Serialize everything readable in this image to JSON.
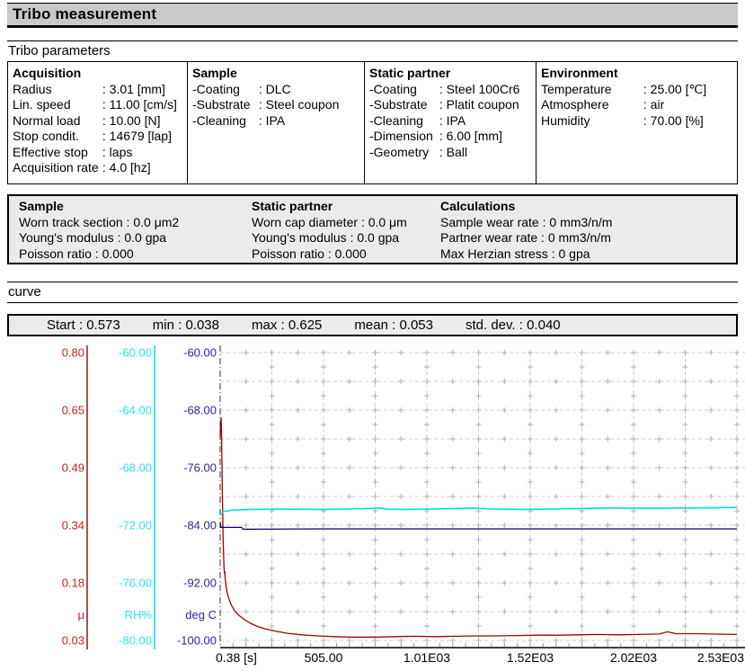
{
  "window": {
    "title": "Tribo measurement"
  },
  "sections": {
    "parameters": "Tribo parameters",
    "curve": "curve"
  },
  "param_box": {
    "columns": [
      {
        "heading": "Acquisition",
        "rows": [
          {
            "label": "Radius",
            "value": "3.01 [mm]"
          },
          {
            "label": "Lin. speed",
            "value": "11.00 [cm/s]"
          },
          {
            "label": "Normal load",
            "value": "10.00 [N]"
          },
          {
            "label": "Stop condit.",
            "value": "14679 [lap]"
          },
          {
            "label": "Effective stop",
            "value": "laps"
          },
          {
            "label": "Acquisition rate",
            "value": "4.0 [hz]"
          }
        ]
      },
      {
        "heading": "Sample",
        "rows": [
          {
            "label": "-Coating",
            "value": "DLC"
          },
          {
            "label": "-Substrate",
            "value": "Steel coupon"
          },
          {
            "label": "-Cleaning",
            "value": "IPA"
          }
        ]
      },
      {
        "heading": "Static partner",
        "rows": [
          {
            "label": "-Coating",
            "value": "Steel 100Cr6"
          },
          {
            "label": "-Substrate",
            "value": "Platit coupon"
          },
          {
            "label": "-Cleaning",
            "value": "IPA"
          },
          {
            "label": "-Dimension",
            "value": "6.00 [mm]"
          },
          {
            "label": "-Geometry",
            "value": "Ball"
          }
        ]
      },
      {
        "heading": "Environment",
        "rows": [
          {
            "label": "Temperature",
            "value": "25.00 [℃]"
          },
          {
            "label": "Atmosphere",
            "value": "air"
          },
          {
            "label": "Humidity",
            "value": "70.00 [%]"
          }
        ]
      }
    ]
  },
  "results_box": {
    "columns": [
      {
        "heading": "Sample",
        "rows": [
          {
            "label": "Worn track section",
            "value": "0.0 μm2"
          },
          {
            "label": "Young's modulus",
            "value": "0.0 gpa"
          },
          {
            "label": "Poisson ratio",
            "value": "0.000"
          }
        ]
      },
      {
        "heading": "Static partner",
        "rows": [
          {
            "label": "Worn cap diameter",
            "value": "0.0 μm"
          },
          {
            "label": "Young's modulus",
            "value": "0.0 gpa"
          },
          {
            "label": "Poisson ratio",
            "value": "0.000"
          }
        ]
      },
      {
        "heading": "Calculations",
        "rows": [
          {
            "label": "Sample wear rate",
            "value": "0 mm3/n/m"
          },
          {
            "label": "Partner wear rate",
            "value": "0 mm3/n/m"
          },
          {
            "label": "Max Herzian stress",
            "value": "0 gpa"
          }
        ]
      }
    ]
  },
  "stats": {
    "items": [
      {
        "label": "Start",
        "value": "0.573"
      },
      {
        "label": "min",
        "value": "0.038"
      },
      {
        "label": "max",
        "value": "0.625"
      },
      {
        "label": "mean",
        "value": "0.053"
      },
      {
        "label": "std. dev.",
        "value": "0.040"
      }
    ]
  },
  "chart_data": {
    "type": "line",
    "grid": true,
    "background": "#ffffff",
    "grid_color": "#cfcfcf",
    "grid_marker_color": "#b0b0b0",
    "x_axis": {
      "unit": "s",
      "range": [
        0.38,
        2530
      ],
      "ticks": [
        "0.38 [s]",
        "505.00",
        "1.01E03",
        "1.52E03",
        "2.02E03",
        "2.53E03"
      ],
      "tick_values": [
        0.38,
        505,
        1010,
        1515,
        2020,
        2525
      ]
    },
    "y_axes": [
      {
        "name": "mu",
        "unit": "μ",
        "color": "#cc2222",
        "axis_line_color": "#8b1a1a",
        "range": [
          0.03,
          0.8
        ],
        "ticks": [
          "0.80",
          "0.65",
          "0.49",
          "0.34",
          "0.18",
          "0.03"
        ]
      },
      {
        "name": "humidity",
        "unit": "RH%",
        "color": "#2fe3e3",
        "axis_line_color": "#00e0e0",
        "range": [
          -80,
          -60
        ],
        "ticks": [
          "-60.00",
          "-64.00",
          "-68.00",
          "-72.00",
          "-76.00",
          "-80.00"
        ]
      },
      {
        "name": "temperature",
        "unit": "deg C",
        "color": "#28289b",
        "axis_line_color": null,
        "range": [
          -100,
          -60
        ],
        "ticks": [
          "-60.00",
          "-68.00",
          "-76.00",
          "-84.00",
          "-92.00",
          "-100.00"
        ]
      }
    ],
    "series": [
      {
        "name": "friction-coefficient",
        "axis": "mu",
        "color": "#a40000",
        "points": [
          [
            0.38,
            0.573
          ],
          [
            2,
            0.605
          ],
          [
            5,
            0.625
          ],
          [
            7,
            0.585
          ],
          [
            9,
            0.5
          ],
          [
            11,
            0.43
          ],
          [
            13,
            0.36
          ],
          [
            15,
            0.3
          ],
          [
            17,
            0.26
          ],
          [
            19,
            0.228
          ],
          [
            21,
            0.21
          ],
          [
            23,
            0.214
          ],
          [
            25,
            0.196
          ],
          [
            28,
            0.18
          ],
          [
            32,
            0.165
          ],
          [
            38,
            0.15
          ],
          [
            45,
            0.138
          ],
          [
            55,
            0.125
          ],
          [
            70,
            0.11
          ],
          [
            90,
            0.098
          ],
          [
            115,
            0.087
          ],
          [
            145,
            0.077
          ],
          [
            180,
            0.068
          ],
          [
            220,
            0.061
          ],
          [
            270,
            0.055
          ],
          [
            330,
            0.049
          ],
          [
            400,
            0.045
          ],
          [
            480,
            0.042
          ],
          [
            560,
            0.04
          ],
          [
            650,
            0.039
          ],
          [
            750,
            0.039
          ],
          [
            850,
            0.04
          ],
          [
            950,
            0.041
          ],
          [
            1050,
            0.04
          ],
          [
            1150,
            0.041
          ],
          [
            1250,
            0.042
          ],
          [
            1350,
            0.042
          ],
          [
            1450,
            0.043
          ],
          [
            1550,
            0.044
          ],
          [
            1650,
            0.044
          ],
          [
            1750,
            0.045
          ],
          [
            1850,
            0.046
          ],
          [
            1950,
            0.045
          ],
          [
            2050,
            0.046
          ],
          [
            2150,
            0.047
          ],
          [
            2190,
            0.053
          ],
          [
            2230,
            0.048
          ],
          [
            2330,
            0.048
          ],
          [
            2400,
            0.047
          ],
          [
            2530,
            0.046
          ]
        ]
      },
      {
        "name": "relative-humidity",
        "axis": "humidity",
        "color": "#00e0e0",
        "points": [
          [
            0.38,
            -71.3
          ],
          [
            15,
            -71.05
          ],
          [
            60,
            -70.95
          ],
          [
            150,
            -70.9
          ],
          [
            300,
            -70.88
          ],
          [
            500,
            -70.9
          ],
          [
            700,
            -70.85
          ],
          [
            780,
            -70.8
          ],
          [
            820,
            -70.88
          ],
          [
            900,
            -70.9
          ],
          [
            1100,
            -70.85
          ],
          [
            1250,
            -70.8
          ],
          [
            1320,
            -70.86
          ],
          [
            1500,
            -70.9
          ],
          [
            1700,
            -70.85
          ],
          [
            1900,
            -70.8
          ],
          [
            2100,
            -70.82
          ],
          [
            2300,
            -70.8
          ],
          [
            2530,
            -70.76
          ]
        ]
      },
      {
        "name": "temperature",
        "axis": "temperature",
        "color": "#00007f",
        "points": [
          [
            0.38,
            -83.6
          ],
          [
            4,
            -84.3
          ],
          [
            10,
            -84.3
          ],
          [
            105,
            -84.3
          ],
          [
            112,
            -84.55
          ],
          [
            500,
            -84.5
          ],
          [
            1000,
            -84.5
          ],
          [
            1500,
            -84.5
          ],
          [
            2000,
            -84.5
          ],
          [
            2530,
            -84.5
          ]
        ]
      }
    ]
  }
}
